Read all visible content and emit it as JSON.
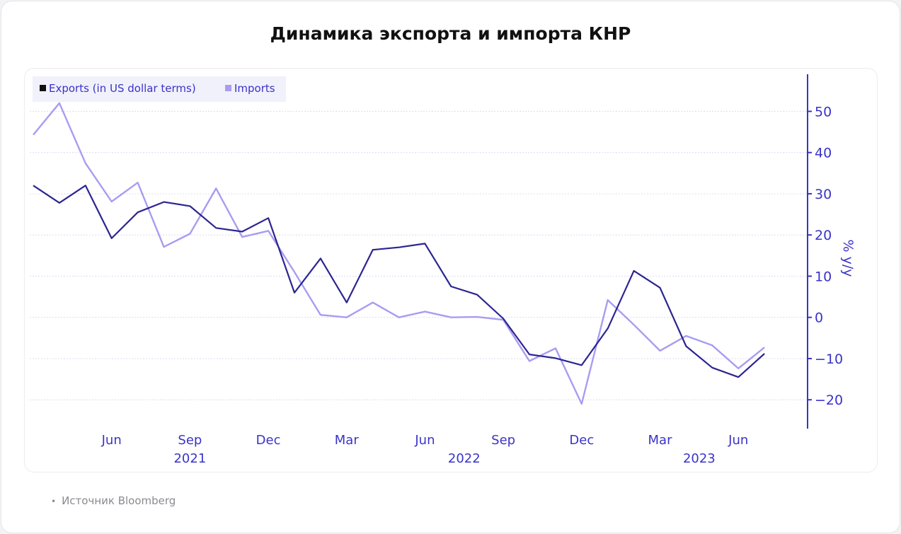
{
  "page": {
    "title": "Динамика экспорта и импорта КНР",
    "source": "Источник Bloomberg"
  },
  "chart_data": {
    "type": "line",
    "ylabel": "% y/y",
    "ylim": [
      -27,
      59
    ],
    "yticks": [
      50,
      40,
      30,
      20,
      10,
      0,
      -10,
      -20
    ],
    "grid": true,
    "legend_position": "top-left",
    "x_month_labels": [
      "Jun",
      "Sep",
      "Dec",
      "Mar",
      "Jun",
      "Sep",
      "Dec",
      "Mar",
      "Jun"
    ],
    "x_year_labels": [
      "2021",
      "2022",
      "2023"
    ],
    "x": [
      "2021-03",
      "2021-04",
      "2021-05",
      "2021-06",
      "2021-07",
      "2021-08",
      "2021-09",
      "2021-10",
      "2021-11",
      "2021-12",
      "2022-01",
      "2022-02",
      "2022-03",
      "2022-04",
      "2022-05",
      "2022-06",
      "2022-07",
      "2022-08",
      "2022-09",
      "2022-10",
      "2022-11",
      "2022-12",
      "2023-01",
      "2023-02",
      "2023-03",
      "2023-04",
      "2023-05",
      "2023-06",
      "2023-07",
      "2023-08"
    ],
    "series": [
      {
        "name": "Exports (in US dollar terms)",
        "color": "#2b2590",
        "values": [
          32,
          27.8,
          32,
          19.2,
          25.5,
          28,
          27,
          21.7,
          20.8,
          24.1,
          6,
          14.3,
          3.6,
          16.4,
          17,
          17.9,
          7.5,
          5.5,
          -0.3,
          -9,
          -9.9,
          -11.6,
          -2.7,
          11.3,
          7.2,
          -7,
          -12.2,
          -14.5,
          -8.8,
          null
        ]
      },
      {
        "name": "Imports",
        "color": "#a89cf2",
        "values": [
          44.3,
          52,
          37.4,
          28.1,
          32.7,
          17.1,
          20.3,
          31.3,
          19.5,
          21,
          11,
          0.6,
          0,
          3.6,
          0,
          1.4,
          0,
          0.1,
          -0.6,
          -10.6,
          -7.5,
          -21,
          4.2,
          -1.8,
          -8.1,
          -4.5,
          -6.8,
          -12.4,
          -7.3,
          null
        ]
      }
    ]
  }
}
